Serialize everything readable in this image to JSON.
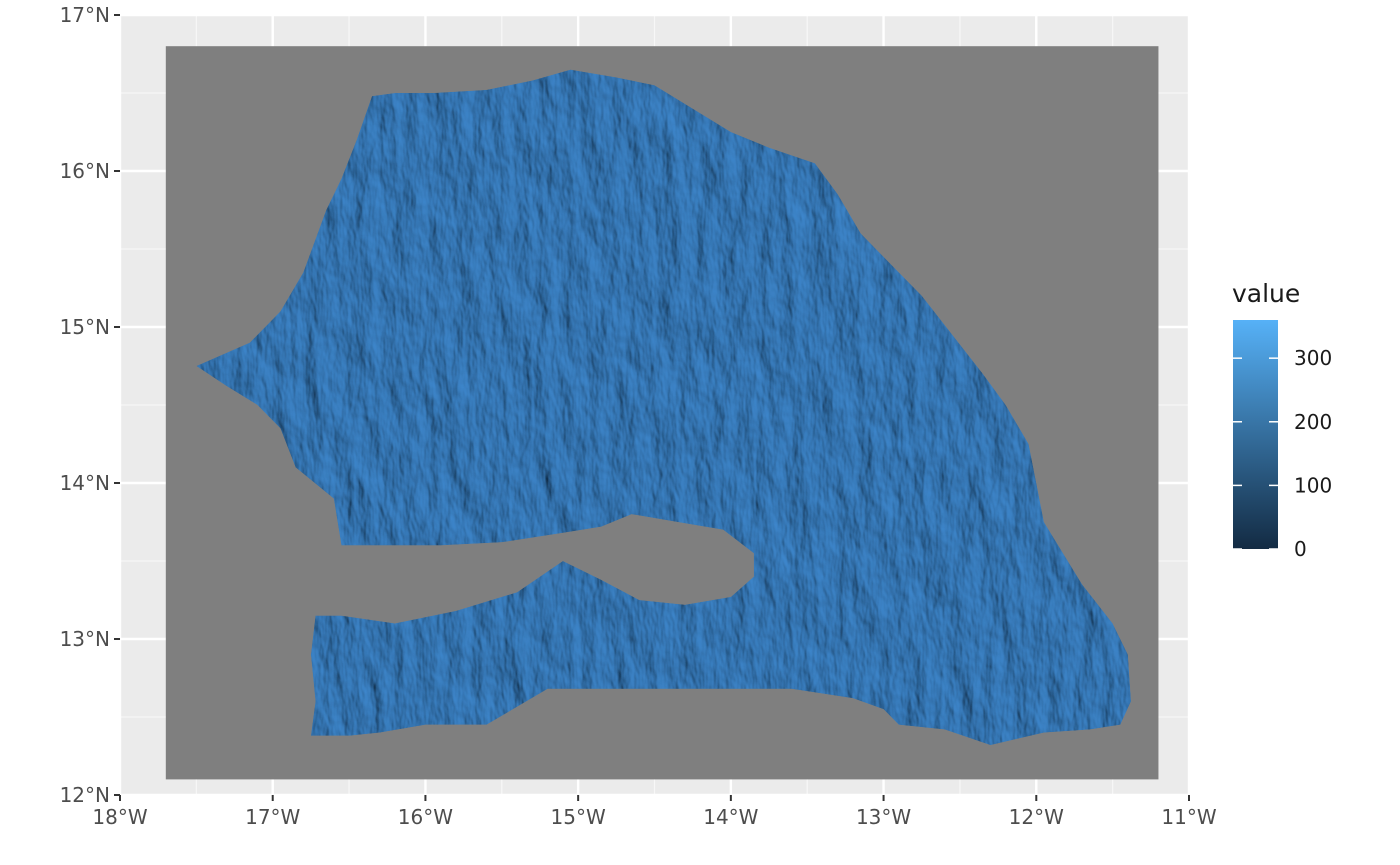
{
  "chart_data": {
    "type": "heatmap",
    "subtype": "raster-map",
    "x_axis": {
      "lim": [
        -18,
        -11
      ],
      "ticks": [
        {
          "value": -18,
          "label": "18°W"
        },
        {
          "value": -17,
          "label": "17°W"
        },
        {
          "value": -16,
          "label": "16°W"
        },
        {
          "value": -15,
          "label": "15°W"
        },
        {
          "value": -14,
          "label": "14°W"
        },
        {
          "value": -13,
          "label": "13°W"
        },
        {
          "value": -12,
          "label": "12°W"
        },
        {
          "value": -11,
          "label": "11°W"
        }
      ]
    },
    "y_axis": {
      "lim": [
        12,
        17
      ],
      "ticks": [
        {
          "value": 12,
          "label": "12°N"
        },
        {
          "value": 13,
          "label": "13°N"
        },
        {
          "value": 14,
          "label": "14°N"
        },
        {
          "value": 15,
          "label": "15°N"
        },
        {
          "value": 16,
          "label": "16°N"
        },
        {
          "value": 17,
          "label": "17°N"
        }
      ]
    },
    "grid": true,
    "raster_extent": {
      "lon": [
        -17.7,
        -11.2
      ],
      "lat": [
        12.1,
        16.8
      ]
    },
    "na_color": "#7f7f7f",
    "legend": {
      "title": "value",
      "position": "right",
      "range": [
        0,
        360
      ],
      "breaks": [
        {
          "value": 0,
          "label": "0"
        },
        {
          "value": 100,
          "label": "100"
        },
        {
          "value": 200,
          "label": "200"
        },
        {
          "value": 300,
          "label": "300"
        }
      ],
      "low_color": "#132b43",
      "high_color": "#56b1f7"
    },
    "land_outline": [
      [
        -17.5,
        14.75
      ],
      [
        -17.15,
        14.9
      ],
      [
        -16.95,
        15.1
      ],
      [
        -16.8,
        15.35
      ],
      [
        -16.65,
        15.75
      ],
      [
        -16.55,
        15.95
      ],
      [
        -16.45,
        16.2
      ],
      [
        -16.35,
        16.48
      ],
      [
        -16.2,
        16.5
      ],
      [
        -15.95,
        16.5
      ],
      [
        -15.6,
        16.52
      ],
      [
        -15.3,
        16.58
      ],
      [
        -15.05,
        16.65
      ],
      [
        -14.75,
        16.6
      ],
      [
        -14.5,
        16.55
      ],
      [
        -14.25,
        16.4
      ],
      [
        -14.0,
        16.25
      ],
      [
        -13.75,
        16.15
      ],
      [
        -13.45,
        16.05
      ],
      [
        -13.3,
        15.85
      ],
      [
        -13.15,
        15.6
      ],
      [
        -12.95,
        15.4
      ],
      [
        -12.75,
        15.2
      ],
      [
        -12.55,
        14.95
      ],
      [
        -12.35,
        14.7
      ],
      [
        -12.2,
        14.5
      ],
      [
        -12.05,
        14.25
      ],
      [
        -12.0,
        14.0
      ],
      [
        -11.95,
        13.75
      ],
      [
        -11.7,
        13.35
      ],
      [
        -11.5,
        13.1
      ],
      [
        -11.4,
        12.9
      ],
      [
        -11.38,
        12.6
      ],
      [
        -11.45,
        12.45
      ],
      [
        -11.65,
        12.42
      ],
      [
        -11.95,
        12.4
      ],
      [
        -12.3,
        12.32
      ],
      [
        -12.6,
        12.42
      ],
      [
        -12.9,
        12.45
      ],
      [
        -13.0,
        12.55
      ],
      [
        -13.2,
        12.62
      ],
      [
        -13.6,
        12.68
      ],
      [
        -14.2,
        12.68
      ],
      [
        -14.8,
        12.68
      ],
      [
        -15.2,
        12.68
      ],
      [
        -15.6,
        12.45
      ],
      [
        -16.0,
        12.45
      ],
      [
        -16.3,
        12.4
      ],
      [
        -16.5,
        12.38
      ],
      [
        -16.75,
        12.38
      ],
      [
        -16.72,
        12.6
      ],
      [
        -16.75,
        12.9
      ],
      [
        -16.72,
        13.15
      ],
      [
        -16.55,
        13.15
      ],
      [
        -16.2,
        13.1
      ],
      [
        -15.8,
        13.18
      ],
      [
        -15.4,
        13.3
      ],
      [
        -15.1,
        13.5
      ],
      [
        -14.85,
        13.38
      ],
      [
        -14.6,
        13.25
      ],
      [
        -14.3,
        13.22
      ],
      [
        -14.0,
        13.27
      ],
      [
        -13.85,
        13.4
      ],
      [
        -13.85,
        13.55
      ],
      [
        -14.05,
        13.7
      ],
      [
        -14.35,
        13.75
      ],
      [
        -14.65,
        13.8
      ],
      [
        -14.85,
        13.72
      ],
      [
        -15.1,
        13.68
      ],
      [
        -15.5,
        13.62
      ],
      [
        -15.9,
        13.6
      ],
      [
        -16.3,
        13.6
      ],
      [
        -16.55,
        13.6
      ],
      [
        -16.6,
        13.9
      ],
      [
        -16.85,
        14.1
      ],
      [
        -16.95,
        14.35
      ],
      [
        -17.1,
        14.5
      ],
      [
        -17.3,
        14.62
      ]
    ]
  }
}
